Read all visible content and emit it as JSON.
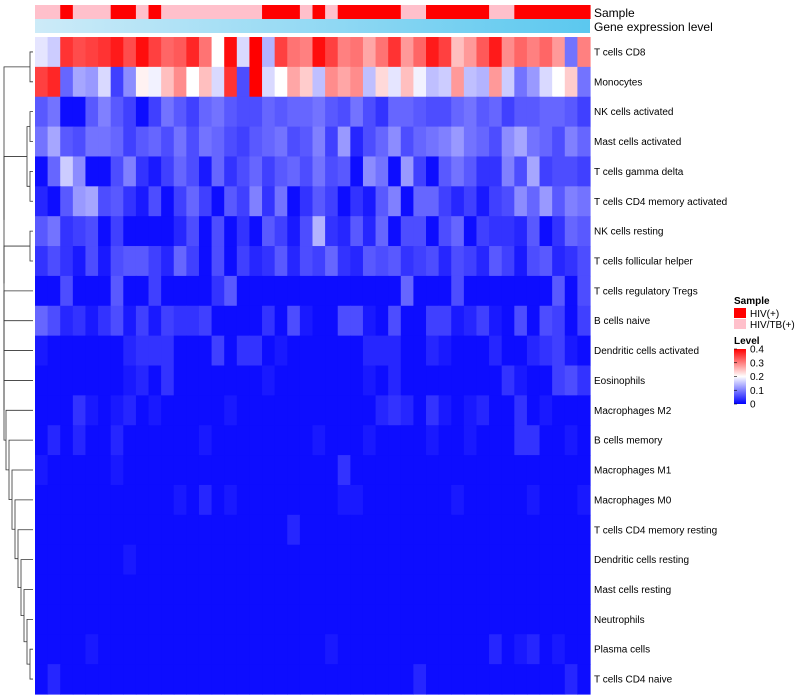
{
  "chart_data": {
    "type": "heatmap",
    "annotations": {
      "sample_label": "Sample",
      "gene_expression_label": "Gene expression level",
      "sample_groups": [
        "HIV/TB(+)",
        "HIV/TB(+)",
        "HIV(+)",
        "HIV/TB(+)",
        "HIV/TB(+)",
        "HIV/TB(+)",
        "HIV(+)",
        "HIV(+)",
        "HIV/TB(+)",
        "HIV(+)",
        "HIV/TB(+)",
        "HIV/TB(+)",
        "HIV/TB(+)",
        "HIV/TB(+)",
        "HIV/TB(+)",
        "HIV/TB(+)",
        "HIV/TB(+)",
        "HIV/TB(+)",
        "HIV(+)",
        "HIV(+)",
        "HIV(+)",
        "HIV/TB(+)",
        "HIV(+)",
        "HIV/TB(+)",
        "HIV(+)",
        "HIV(+)",
        "HIV(+)",
        "HIV(+)",
        "HIV(+)",
        "HIV/TB(+)",
        "HIV/TB(+)",
        "HIV(+)",
        "HIV(+)",
        "HIV(+)",
        "HIV(+)",
        "HIV(+)",
        "HIV/TB(+)",
        "HIV/TB(+)",
        "HIV(+)",
        "HIV(+)",
        "HIV(+)",
        "HIV(+)",
        "HIV(+)",
        "HIV(+)"
      ],
      "gene_expression_colors": [
        "#cdebf8",
        "#5bc8ef"
      ]
    },
    "rows": [
      {
        "name": "T cells CD8",
        "values": [
          0.18,
          0.16,
          0.36,
          0.34,
          0.35,
          0.36,
          0.38,
          0.34,
          0.39,
          0.35,
          0.32,
          0.33,
          0.37,
          0.31,
          0.2,
          0.39,
          0.17,
          0.4,
          0.14,
          0.35,
          0.31,
          0.3,
          0.39,
          0.35,
          0.3,
          0.31,
          0.27,
          0.31,
          0.36,
          0.28,
          0.32,
          0.38,
          0.35,
          0.25,
          0.28,
          0.33,
          0.38,
          0.29,
          0.32,
          0.3,
          0.32,
          0.28,
          0.09,
          0.3
        ]
      },
      {
        "name": "Monocytes",
        "values": [
          0.35,
          0.37,
          0.08,
          0.13,
          0.12,
          0.17,
          0.05,
          0.11,
          0.21,
          0.19,
          0.25,
          0.29,
          0.2,
          0.25,
          0.17,
          0.36,
          0.06,
          0.4,
          0.17,
          0.2,
          0.27,
          0.24,
          0.15,
          0.29,
          0.27,
          0.29,
          0.15,
          0.23,
          0.18,
          0.25,
          0.19,
          0.15,
          0.16,
          0.28,
          0.15,
          0.14,
          0.28,
          0.16,
          0.09,
          0.12,
          0.17,
          0.2,
          0.24,
          0.09
        ]
      },
      {
        "name": "NK cells activated",
        "values": [
          0.07,
          0.09,
          0.01,
          0.01,
          0.07,
          0.1,
          0.07,
          0.05,
          0.01,
          0.05,
          0.09,
          0.07,
          0.05,
          0.08,
          0.09,
          0.07,
          0.06,
          0.06,
          0.08,
          0.07,
          0.08,
          0.08,
          0.09,
          0.07,
          0.06,
          0.09,
          0.06,
          0.04,
          0.08,
          0.08,
          0.07,
          0.06,
          0.06,
          0.08,
          0.09,
          0.07,
          0.08,
          0.05,
          0.07,
          0.07,
          0.08,
          0.08,
          0.07,
          0.05
        ]
      },
      {
        "name": "Mast cells activated",
        "values": [
          0.09,
          0.13,
          0.07,
          0.06,
          0.09,
          0.09,
          0.08,
          0.05,
          0.07,
          0.08,
          0.06,
          0.09,
          0.06,
          0.09,
          0.08,
          0.06,
          0.05,
          0.07,
          0.08,
          0.09,
          0.06,
          0.07,
          0.1,
          0.05,
          0.12,
          0.03,
          0.06,
          0.08,
          0.11,
          0.06,
          0.08,
          0.09,
          0.1,
          0.12,
          0.09,
          0.08,
          0.06,
          0.11,
          0.13,
          0.09,
          0.08,
          0.06,
          0.1,
          0.08
        ]
      },
      {
        "name": "T cells gamma delta",
        "values": [
          0.01,
          0.08,
          0.16,
          0.11,
          0.01,
          0.01,
          0.06,
          0.1,
          0.04,
          0.02,
          0.05,
          0.08,
          0.06,
          0.02,
          0.08,
          0.04,
          0.06,
          0.08,
          0.05,
          0.07,
          0.08,
          0.06,
          0.09,
          0.06,
          0.07,
          0.01,
          0.11,
          0.09,
          0.01,
          0.12,
          0.05,
          0.01,
          0.07,
          0.09,
          0.07,
          0.04,
          0.04,
          0.1,
          0.06,
          0.13,
          0.05,
          0.06,
          0.06,
          0.05
        ]
      },
      {
        "name": "T cells CD4 memory activated",
        "values": [
          0.03,
          0.01,
          0.07,
          0.12,
          0.13,
          0.06,
          0.07,
          0.04,
          0.02,
          0.06,
          0.01,
          0.05,
          0.08,
          0.05,
          0.01,
          0.07,
          0.05,
          0.1,
          0.04,
          0.09,
          0.01,
          0.04,
          0.07,
          0.05,
          0.01,
          0.04,
          0.02,
          0.07,
          0.1,
          0.01,
          0.08,
          0.08,
          0.05,
          0.03,
          0.05,
          0.02,
          0.05,
          0.06,
          0.11,
          0.08,
          0.12,
          0.07,
          0.1,
          0.09
        ]
      },
      {
        "name": "NK cells resting",
        "values": [
          0.07,
          0.09,
          0.04,
          0.05,
          0.06,
          0.01,
          0.05,
          0.01,
          0.01,
          0.01,
          0.01,
          0.03,
          0.06,
          0.01,
          0.06,
          0.01,
          0.04,
          0.01,
          0.07,
          0.05,
          0.02,
          0.06,
          0.14,
          0.04,
          0.03,
          0.07,
          0.03,
          0.08,
          0.01,
          0.06,
          0.06,
          0.01,
          0.06,
          0.08,
          0.01,
          0.05,
          0.04,
          0.04,
          0.03,
          0.07,
          0.01,
          0.04,
          0.08,
          0.07
        ]
      },
      {
        "name": "T cells follicular helper",
        "values": [
          0.04,
          0.06,
          0.04,
          0.02,
          0.06,
          0.02,
          0.06,
          0.07,
          0.07,
          0.05,
          0.03,
          0.08,
          0.05,
          0.01,
          0.06,
          0.01,
          0.05,
          0.03,
          0.04,
          0.07,
          0.03,
          0.06,
          0.05,
          0.08,
          0.04,
          0.03,
          0.07,
          0.06,
          0.07,
          0.04,
          0.05,
          0.06,
          0.03,
          0.06,
          0.05,
          0.03,
          0.07,
          0.05,
          0.02,
          0.06,
          0.07,
          0.03,
          0.04,
          0.06
        ]
      },
      {
        "name": "T cells regulatory  Tregs",
        "values": [
          0.01,
          0.01,
          0.06,
          0.01,
          0.01,
          0.01,
          0.07,
          0.01,
          0.01,
          0.05,
          0.01,
          0.01,
          0.01,
          0.01,
          0.04,
          0.07,
          0.01,
          0.01,
          0.01,
          0.01,
          0.01,
          0.01,
          0.01,
          0.01,
          0.01,
          0.01,
          0.01,
          0.01,
          0.01,
          0.08,
          0.01,
          0.01,
          0.01,
          0.06,
          0.01,
          0.01,
          0.01,
          0.01,
          0.01,
          0.01,
          0.01,
          0.07,
          0.01,
          0.06
        ]
      },
      {
        "name": "B cells naive",
        "values": [
          0.08,
          0.06,
          0.03,
          0.04,
          0.02,
          0.04,
          0.06,
          0.02,
          0.05,
          0.02,
          0.05,
          0.04,
          0.04,
          0.05,
          0.01,
          0.01,
          0.01,
          0.01,
          0.04,
          0.01,
          0.06,
          0.02,
          0.01,
          0.01,
          0.06,
          0.06,
          0.02,
          0.01,
          0.06,
          0.01,
          0.01,
          0.05,
          0.05,
          0.02,
          0.03,
          0.05,
          0.02,
          0.01,
          0.06,
          0.01,
          0.06,
          0.05,
          0.01,
          0.05
        ]
      },
      {
        "name": "Dendritic cells activated",
        "values": [
          0.02,
          0.01,
          0.01,
          0.01,
          0.01,
          0.01,
          0.01,
          0.03,
          0.04,
          0.04,
          0.04,
          0.01,
          0.01,
          0.01,
          0.05,
          0.01,
          0.04,
          0.04,
          0.01,
          0.02,
          0.01,
          0.01,
          0.01,
          0.01,
          0.01,
          0.01,
          0.03,
          0.03,
          0.03,
          0.01,
          0.01,
          0.03,
          0.02,
          0.01,
          0.01,
          0.01,
          0.03,
          0.01,
          0.01,
          0.03,
          0.04,
          0.05,
          0.02,
          0.01
        ]
      },
      {
        "name": "Eosinophils",
        "values": [
          0.01,
          0.01,
          0.01,
          0.01,
          0.01,
          0.01,
          0.01,
          0.02,
          0.03,
          0.01,
          0.04,
          0.01,
          0.01,
          0.01,
          0.01,
          0.01,
          0.01,
          0.01,
          0.02,
          0.01,
          0.01,
          0.01,
          0.01,
          0.01,
          0.01,
          0.01,
          0.02,
          0.01,
          0.03,
          0.01,
          0.01,
          0.01,
          0.01,
          0.01,
          0.01,
          0.01,
          0.01,
          0.04,
          0.02,
          0.01,
          0.01,
          0.05,
          0.06,
          0.04
        ]
      },
      {
        "name": "Macrophages M2",
        "values": [
          0.01,
          0.01,
          0.01,
          0.04,
          0.02,
          0.01,
          0.02,
          0.03,
          0.01,
          0.02,
          0.01,
          0.01,
          0.01,
          0.01,
          0.01,
          0.02,
          0.01,
          0.01,
          0.01,
          0.01,
          0.01,
          0.01,
          0.01,
          0.01,
          0.01,
          0.01,
          0.01,
          0.03,
          0.04,
          0.03,
          0.01,
          0.04,
          0.02,
          0.01,
          0.02,
          0.03,
          0.01,
          0.01,
          0.04,
          0.01,
          0.02,
          0.01,
          0.01,
          0.01
        ]
      },
      {
        "name": "B cells memory",
        "values": [
          0.01,
          0.03,
          0.01,
          0.03,
          0.01,
          0.01,
          0.03,
          0.01,
          0.01,
          0.01,
          0.01,
          0.01,
          0.01,
          0.02,
          0.01,
          0.01,
          0.01,
          0.01,
          0.01,
          0.01,
          0.01,
          0.01,
          0.02,
          0.01,
          0.01,
          0.01,
          0.02,
          0.01,
          0.01,
          0.01,
          0.01,
          0.02,
          0.01,
          0.01,
          0.02,
          0.01,
          0.01,
          0.01,
          0.04,
          0.04,
          0.01,
          0.01,
          0.02,
          0.01
        ]
      },
      {
        "name": "Macrophages M1",
        "values": [
          0.02,
          0.01,
          0.01,
          0.01,
          0.01,
          0.01,
          0.02,
          0.01,
          0.01,
          0.01,
          0.01,
          0.01,
          0.01,
          0.01,
          0.01,
          0.01,
          0.01,
          0.01,
          0.01,
          0.01,
          0.01,
          0.01,
          0.01,
          0.01,
          0.04,
          0.01,
          0.01,
          0.01,
          0.01,
          0.01,
          0.01,
          0.01,
          0.01,
          0.01,
          0.01,
          0.01,
          0.01,
          0.01,
          0.01,
          0.01,
          0.01,
          0.01,
          0.01,
          0.01
        ]
      },
      {
        "name": "Macrophages M0",
        "values": [
          0.01,
          0.01,
          0.01,
          0.01,
          0.01,
          0.01,
          0.01,
          0.01,
          0.01,
          0.01,
          0.01,
          0.02,
          0.01,
          0.03,
          0.01,
          0.02,
          0.01,
          0.01,
          0.01,
          0.01,
          0.01,
          0.01,
          0.01,
          0.01,
          0.02,
          0.02,
          0.01,
          0.01,
          0.01,
          0.01,
          0.01,
          0.01,
          0.01,
          0.02,
          0.01,
          0.01,
          0.01,
          0.01,
          0.01,
          0.02,
          0.01,
          0.01,
          0.01,
          0.02
        ]
      },
      {
        "name": "T cells CD4 memory resting",
        "values": [
          0.01,
          0.01,
          0.01,
          0.01,
          0.01,
          0.01,
          0.01,
          0.01,
          0.01,
          0.01,
          0.01,
          0.01,
          0.01,
          0.01,
          0.01,
          0.01,
          0.01,
          0.01,
          0.01,
          0.01,
          0.03,
          0.01,
          0.01,
          0.01,
          0.01,
          0.01,
          0.01,
          0.01,
          0.01,
          0.01,
          0.01,
          0.01,
          0.01,
          0.01,
          0.01,
          0.01,
          0.01,
          0.01,
          0.01,
          0.01,
          0.01,
          0.01,
          0.01,
          0.01
        ]
      },
      {
        "name": "Dendritic cells resting",
        "values": [
          0.01,
          0.01,
          0.01,
          0.01,
          0.01,
          0.01,
          0.01,
          0.02,
          0.01,
          0.01,
          0.01,
          0.01,
          0.01,
          0.01,
          0.01,
          0.01,
          0.01,
          0.01,
          0.01,
          0.01,
          0.01,
          0.01,
          0.01,
          0.01,
          0.01,
          0.01,
          0.01,
          0.01,
          0.01,
          0.01,
          0.01,
          0.01,
          0.01,
          0.01,
          0.01,
          0.01,
          0.01,
          0.01,
          0.01,
          0.01,
          0.01,
          0.01,
          0.01,
          0.01
        ]
      },
      {
        "name": "Mast cells resting",
        "values": [
          0.01,
          0.01,
          0.01,
          0.01,
          0.01,
          0.01,
          0.01,
          0.01,
          0.01,
          0.01,
          0.01,
          0.01,
          0.01,
          0.01,
          0.01,
          0.01,
          0.01,
          0.01,
          0.01,
          0.01,
          0.01,
          0.01,
          0.01,
          0.01,
          0.01,
          0.01,
          0.01,
          0.01,
          0.01,
          0.01,
          0.01,
          0.01,
          0.01,
          0.01,
          0.01,
          0.01,
          0.01,
          0.01,
          0.01,
          0.01,
          0.01,
          0.01,
          0.01,
          0.01
        ]
      },
      {
        "name": "Neutrophils",
        "values": [
          0.01,
          0.01,
          0.01,
          0.01,
          0.01,
          0.01,
          0.01,
          0.01,
          0.01,
          0.01,
          0.01,
          0.01,
          0.01,
          0.01,
          0.01,
          0.01,
          0.01,
          0.01,
          0.01,
          0.01,
          0.01,
          0.01,
          0.01,
          0.01,
          0.01,
          0.01,
          0.01,
          0.01,
          0.01,
          0.01,
          0.01,
          0.01,
          0.01,
          0.01,
          0.01,
          0.01,
          0.01,
          0.01,
          0.01,
          0.01,
          0.01,
          0.01,
          0.01,
          0.01
        ]
      },
      {
        "name": "Plasma cells",
        "values": [
          0.01,
          0.01,
          0.01,
          0.01,
          0.02,
          0.01,
          0.01,
          0.01,
          0.01,
          0.01,
          0.01,
          0.01,
          0.01,
          0.01,
          0.01,
          0.01,
          0.01,
          0.01,
          0.01,
          0.01,
          0.01,
          0.01,
          0.01,
          0.02,
          0.01,
          0.01,
          0.01,
          0.01,
          0.01,
          0.01,
          0.01,
          0.01,
          0.01,
          0.01,
          0.01,
          0.01,
          0.03,
          0.01,
          0.02,
          0.03,
          0.01,
          0.02,
          0.01,
          0.01
        ]
      },
      {
        "name": "T cells CD4 naive",
        "values": [
          0.01,
          0.03,
          0.01,
          0.01,
          0.01,
          0.01,
          0.01,
          0.01,
          0.01,
          0.01,
          0.01,
          0.01,
          0.01,
          0.01,
          0.01,
          0.01,
          0.01,
          0.01,
          0.01,
          0.01,
          0.01,
          0.01,
          0.01,
          0.01,
          0.01,
          0.01,
          0.01,
          0.01,
          0.01,
          0.01,
          0.03,
          0.01,
          0.01,
          0.01,
          0.01,
          0.01,
          0.01,
          0.01,
          0.01,
          0.01,
          0.01,
          0.01,
          0.03,
          0.01
        ]
      }
    ],
    "legend": {
      "sample_title": "Sample",
      "sample_entries": [
        {
          "label": "HIV(+)",
          "color": "#ff0000"
        },
        {
          "label": "HIV/TB(+)",
          "color": "#ffc0cb"
        }
      ],
      "level_title": "Level",
      "level_ticks": [
        "0.4",
        "0.3",
        "0.2",
        "0.1",
        "0"
      ],
      "level_tick_values": [
        0.4,
        0.3,
        0.2,
        0.1,
        0
      ],
      "color_scale": {
        "low": "#0000ff",
        "mid": "#ffffff",
        "high": "#ff0000",
        "min": 0,
        "mid_value": 0.2,
        "max": 0.4
      }
    }
  }
}
